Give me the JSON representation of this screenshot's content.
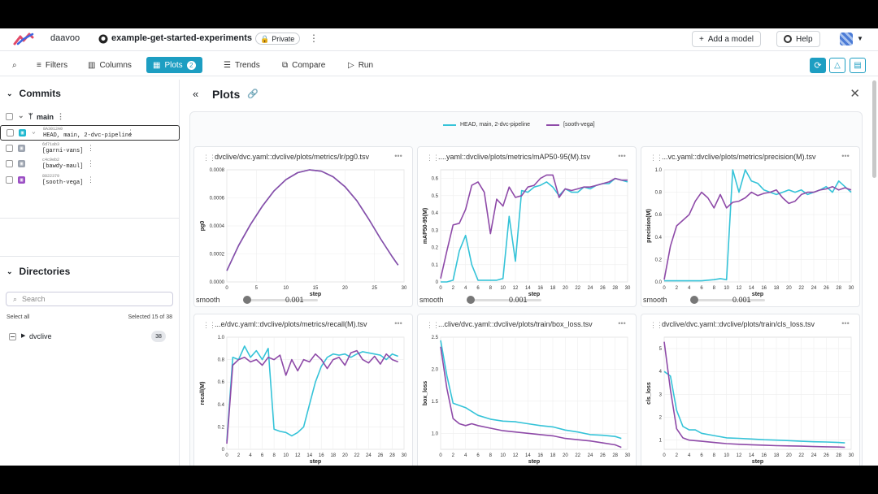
{
  "topbar": {
    "org": "daavoo",
    "repo": "example-get-started-experiments",
    "private_label": "Private",
    "add_model": "Add a model",
    "help": "Help"
  },
  "toolbar": {
    "filters": "Filters",
    "columns": "Columns",
    "plots": "Plots",
    "plots_count": "2",
    "trends": "Trends",
    "compare": "Compare",
    "run": "Run"
  },
  "commits": {
    "title": "Commits",
    "branch": "main",
    "rows": [
      {
        "sha": "8A3012A0",
        "label": "HEAD, main, 2-dvc-pipeline",
        "color": "#1fb8d0",
        "selected": true
      },
      {
        "sha": "6d71ab3",
        "label": "[garni-vans]",
        "color": "#9ca3af",
        "selected": false
      },
      {
        "sha": "c4c9eb2",
        "label": "[bawdy-maul]",
        "color": "#9ca3af",
        "selected": false
      },
      {
        "sha": "8822379",
        "label": "[sooth-vega]",
        "color": "#9b4fc4",
        "selected": false
      }
    ]
  },
  "directories": {
    "title": "Directories",
    "search_placeholder": "Search",
    "select_all": "Select all",
    "selected_text": "Selected 15 of 38",
    "items": [
      {
        "name": "dvclive",
        "count": "38"
      }
    ]
  },
  "plots": {
    "title": "Plots",
    "legend": [
      {
        "name": "HEAD, main, 2-dvc-pipeline",
        "color": "#35c3d8"
      },
      {
        "name": "[sooth-vega]",
        "color": "#8e4aa8"
      }
    ],
    "smooth_label": "smooth",
    "smooth_value": "0.001",
    "colors": {
      "head": "#35c3d8",
      "sooth": "#8e4aa8"
    },
    "cards": [
      {
        "title": "dvclive/dvc.yaml::dvclive/plots/metrics/lr/pg0.tsv",
        "chart_data": {
          "type": "line",
          "xlabel": "step",
          "ylabel": "pg0",
          "xlim": [
            0,
            30
          ],
          "ylim": [
            0,
            0.0008
          ],
          "xticks": [
            0,
            5,
            10,
            15,
            20,
            25,
            30
          ],
          "yticks": [
            "0.0000",
            "0.0002",
            "0.0004",
            "0.0006",
            "0.0008"
          ],
          "series": [
            {
              "name": "HEAD, main, 2-dvc-pipeline",
              "x": [
                0,
                2,
                4,
                6,
                8,
                10,
                12,
                14,
                16,
                18,
                20,
                22,
                24,
                26,
                28,
                29
              ],
              "y": [
                8e-05,
                0.00026,
                0.00041,
                0.00054,
                0.00065,
                0.00073,
                0.00078,
                0.0008,
                0.00079,
                0.00075,
                0.00068,
                0.00058,
                0.00045,
                0.00031,
                0.00018,
                0.00012
              ]
            },
            {
              "name": "[sooth-vega]",
              "x": [
                0,
                2,
                4,
                6,
                8,
                10,
                12,
                14,
                16,
                18,
                20,
                22,
                24,
                26,
                28,
                29
              ],
              "y": [
                8e-05,
                0.00026,
                0.00041,
                0.00054,
                0.00065,
                0.00073,
                0.00078,
                0.0008,
                0.00079,
                0.00075,
                0.00068,
                0.00058,
                0.00045,
                0.00031,
                0.00018,
                0.00012
              ]
            }
          ]
        }
      },
      {
        "title": "....yaml::dvclive/plots/metrics/mAP50-95(M).tsv",
        "chart_data": {
          "type": "line",
          "xlabel": "step",
          "ylabel": "mAP50-95(M)",
          "xlim": [
            0,
            30
          ],
          "ylim": [
            0,
            0.65
          ],
          "xticks": [
            0,
            2,
            4,
            6,
            8,
            10,
            12,
            14,
            16,
            18,
            20,
            22,
            24,
            26,
            28,
            30
          ],
          "yticks": [
            "0",
            "0.1",
            "0.2",
            "0.3",
            "0.4",
            "0.5",
            "0.6"
          ],
          "series": [
            {
              "name": "HEAD, main, 2-dvc-pipeline",
              "x": [
                0,
                1,
                2,
                3,
                4,
                5,
                6,
                7,
                8,
                9,
                10,
                11,
                12,
                13,
                14,
                15,
                16,
                17,
                18,
                19,
                20,
                21,
                22,
                23,
                24,
                25,
                26,
                27,
                28,
                29,
                30
              ],
              "y": [
                0,
                0,
                0.01,
                0.18,
                0.27,
                0.1,
                0.01,
                0.01,
                0.01,
                0.01,
                0.02,
                0.38,
                0.12,
                0.53,
                0.52,
                0.55,
                0.56,
                0.58,
                0.55,
                0.5,
                0.54,
                0.52,
                0.52,
                0.55,
                0.54,
                0.56,
                0.57,
                0.57,
                0.6,
                0.59,
                0.58
              ]
            },
            {
              "name": "[sooth-vega]",
              "x": [
                0,
                1,
                2,
                3,
                4,
                5,
                6,
                7,
                8,
                9,
                10,
                11,
                12,
                13,
                14,
                15,
                16,
                17,
                18,
                19,
                20,
                21,
                22,
                23,
                24,
                25,
                26,
                27,
                28,
                29,
                30
              ],
              "y": [
                0.02,
                0.18,
                0.33,
                0.34,
                0.42,
                0.56,
                0.58,
                0.52,
                0.28,
                0.48,
                0.44,
                0.55,
                0.49,
                0.5,
                0.55,
                0.56,
                0.6,
                0.62,
                0.62,
                0.49,
                0.54,
                0.53,
                0.54,
                0.55,
                0.55,
                0.56,
                0.57,
                0.58,
                0.6,
                0.59,
                0.59
              ]
            }
          ]
        }
      },
      {
        "title": "...vc.yaml::dvclive/plots/metrics/precision(M).tsv",
        "chart_data": {
          "type": "line",
          "xlabel": "step",
          "ylabel": "precision(M)",
          "xlim": [
            0,
            30
          ],
          "ylim": [
            0,
            1.0
          ],
          "xticks": [
            0,
            2,
            4,
            6,
            8,
            10,
            12,
            14,
            16,
            18,
            20,
            22,
            24,
            26,
            28,
            30
          ],
          "yticks": [
            "0.0",
            "0.2",
            "0.4",
            "0.6",
            "0.8",
            "1.0"
          ],
          "series": [
            {
              "name": "HEAD, main, 2-dvc-pipeline",
              "x": [
                0,
                2,
                4,
                6,
                8,
                9,
                10,
                11,
                12,
                13,
                14,
                15,
                16,
                17,
                18,
                19,
                20,
                21,
                22,
                23,
                24,
                25,
                26,
                27,
                28,
                29,
                30
              ],
              "y": [
                0.01,
                0.01,
                0.01,
                0.01,
                0.02,
                0.03,
                0.02,
                1.0,
                0.8,
                1.0,
                0.9,
                0.88,
                0.82,
                0.8,
                0.78,
                0.8,
                0.82,
                0.8,
                0.82,
                0.78,
                0.8,
                0.82,
                0.85,
                0.8,
                0.9,
                0.85,
                0.8
              ]
            },
            {
              "name": "[sooth-vega]",
              "x": [
                0,
                1,
                2,
                3,
                4,
                5,
                6,
                7,
                8,
                9,
                10,
                11,
                12,
                13,
                14,
                15,
                16,
                17,
                18,
                19,
                20,
                21,
                22,
                23,
                24,
                25,
                26,
                27,
                28,
                29,
                30
              ],
              "y": [
                0.02,
                0.32,
                0.5,
                0.55,
                0.6,
                0.72,
                0.8,
                0.75,
                0.66,
                0.78,
                0.66,
                0.71,
                0.72,
                0.75,
                0.8,
                0.77,
                0.79,
                0.8,
                0.82,
                0.75,
                0.7,
                0.72,
                0.78,
                0.8,
                0.8,
                0.82,
                0.83,
                0.85,
                0.82,
                0.84,
                0.82
              ]
            }
          ]
        }
      },
      {
        "title": "...e/dvc.yaml::dvclive/plots/metrics/recall(M).tsv",
        "chart_data": {
          "type": "line",
          "xlabel": "step",
          "ylabel": "recall(M)",
          "xlim": [
            0,
            30
          ],
          "ylim": [
            0,
            1.0
          ],
          "xticks": [
            0,
            2,
            4,
            6,
            8,
            10,
            12,
            14,
            16,
            18,
            20,
            22,
            24,
            26,
            28,
            30
          ],
          "yticks": [
            "0",
            "0.2",
            "0.4",
            "0.6",
            "0.8",
            "1.0"
          ],
          "series": [
            {
              "name": "HEAD, main, 2-dvc-pipeline",
              "x": [
                0,
                1,
                2,
                3,
                4,
                5,
                6,
                7,
                8,
                9,
                10,
                11,
                12,
                13,
                14,
                15,
                16,
                17,
                18,
                19,
                20,
                21,
                22,
                23,
                24,
                25,
                26,
                27,
                28,
                29
              ],
              "y": [
                0.07,
                0.82,
                0.8,
                0.92,
                0.82,
                0.88,
                0.8,
                0.9,
                0.18,
                0.16,
                0.15,
                0.12,
                0.15,
                0.2,
                0.4,
                0.6,
                0.74,
                0.82,
                0.85,
                0.84,
                0.85,
                0.82,
                0.85,
                0.87,
                0.86,
                0.85,
                0.84,
                0.8,
                0.85,
                0.83
              ]
            },
            {
              "name": "[sooth-vega]",
              "x": [
                0,
                1,
                2,
                3,
                4,
                5,
                6,
                7,
                8,
                9,
                10,
                11,
                12,
                13,
                14,
                15,
                16,
                17,
                18,
                19,
                20,
                21,
                22,
                23,
                24,
                25,
                26,
                27,
                28,
                29
              ],
              "y": [
                0.05,
                0.75,
                0.8,
                0.82,
                0.78,
                0.8,
                0.75,
                0.82,
                0.8,
                0.84,
                0.66,
                0.8,
                0.7,
                0.8,
                0.78,
                0.85,
                0.8,
                0.72,
                0.8,
                0.82,
                0.75,
                0.86,
                0.88,
                0.8,
                0.77,
                0.83,
                0.76,
                0.85,
                0.8,
                0.78
              ]
            }
          ]
        }
      },
      {
        "title": "...clive/dvc.yaml::dvclive/plots/train/box_loss.tsv",
        "chart_data": {
          "type": "line",
          "xlabel": "step",
          "ylabel": "box_loss",
          "xlim": [
            0,
            30
          ],
          "ylim": [
            0.75,
            2.5
          ],
          "xticks": [
            0,
            2,
            4,
            6,
            8,
            10,
            12,
            14,
            16,
            18,
            20,
            22,
            24,
            26,
            28,
            30
          ],
          "yticks": [
            "1.0",
            "1.5",
            "2.0",
            "2.5"
          ],
          "series": [
            {
              "name": "HEAD, main, 2-dvc-pipeline",
              "x": [
                0,
                1,
                2,
                4,
                6,
                8,
                10,
                12,
                14,
                16,
                18,
                20,
                22,
                24,
                26,
                28,
                29
              ],
              "y": [
                2.45,
                1.9,
                1.47,
                1.4,
                1.28,
                1.22,
                1.19,
                1.18,
                1.15,
                1.12,
                1.1,
                1.05,
                1.02,
                0.98,
                0.97,
                0.95,
                0.92
              ]
            },
            {
              "name": "[sooth-vega]",
              "x": [
                0,
                1,
                2,
                3,
                4,
                5,
                6,
                8,
                10,
                12,
                14,
                16,
                18,
                20,
                22,
                24,
                26,
                28,
                29
              ],
              "y": [
                2.35,
                1.7,
                1.23,
                1.15,
                1.12,
                1.15,
                1.12,
                1.08,
                1.04,
                1.02,
                1,
                0.98,
                0.96,
                0.92,
                0.9,
                0.88,
                0.85,
                0.82,
                0.78
              ]
            }
          ]
        }
      },
      {
        "title": "dvclive/dvc.yaml::dvclive/plots/train/cls_loss.tsv",
        "chart_data": {
          "type": "line",
          "xlabel": "step",
          "ylabel": "cls_loss",
          "xlim": [
            0,
            30
          ],
          "ylim": [
            0.6,
            5.5
          ],
          "xticks": [
            0,
            2,
            4,
            6,
            8,
            10,
            12,
            14,
            16,
            18,
            20,
            22,
            24,
            26,
            28,
            30
          ],
          "yticks": [
            "1",
            "2",
            "3",
            "4",
            "5"
          ],
          "series": [
            {
              "name": "HEAD, main, 2-dvc-pipeline",
              "x": [
                0,
                1,
                2,
                3,
                4,
                5,
                6,
                8,
                10,
                12,
                14,
                16,
                18,
                20,
                22,
                24,
                26,
                28,
                29
              ],
              "y": [
                4.0,
                3.8,
                2.3,
                1.6,
                1.45,
                1.45,
                1.3,
                1.2,
                1.1,
                1.08,
                1.05,
                1.02,
                1,
                0.98,
                0.95,
                0.93,
                0.92,
                0.9,
                0.88
              ]
            },
            {
              "name": "[sooth-vega]",
              "x": [
                0,
                1,
                2,
                3,
                4,
                6,
                8,
                10,
                12,
                14,
                16,
                18,
                20,
                22,
                24,
                26,
                28,
                29
              ],
              "y": [
                5.3,
                3.2,
                1.5,
                1.1,
                1.0,
                0.95,
                0.9,
                0.85,
                0.82,
                0.8,
                0.78,
                0.76,
                0.75,
                0.74,
                0.72,
                0.71,
                0.7,
                0.69
              ]
            }
          ]
        }
      }
    ]
  }
}
